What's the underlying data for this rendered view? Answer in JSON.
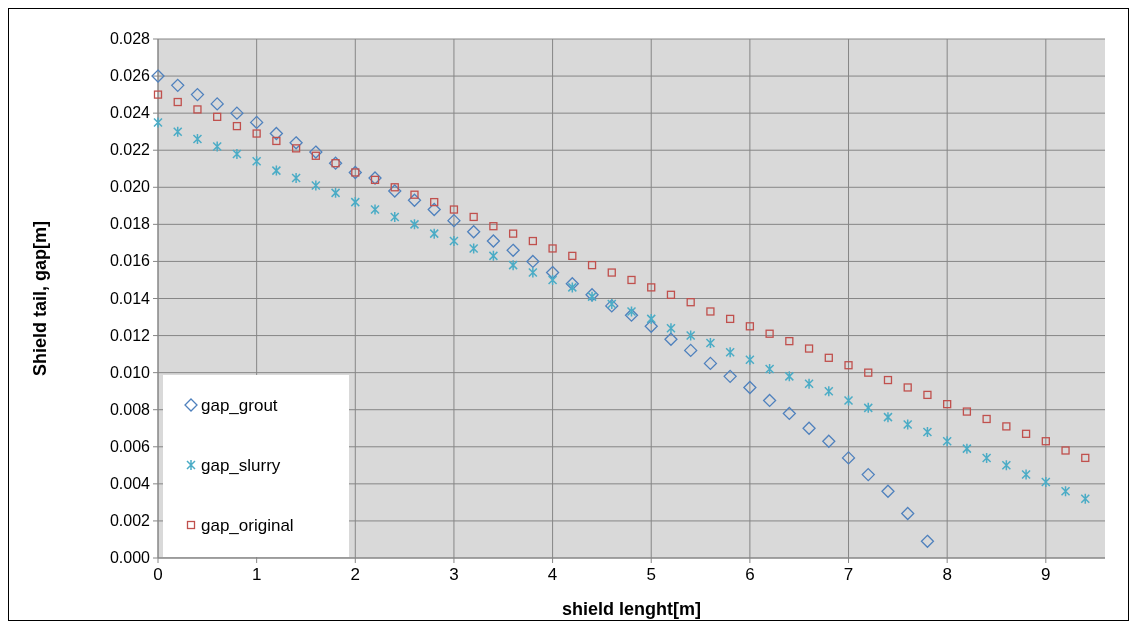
{
  "chart_data": {
    "type": "scatter",
    "xlabel": "shield lenght[m]",
    "ylabel": "Shield tail, gap[m]",
    "xlim": [
      0,
      9.6
    ],
    "xticks": [
      0,
      1,
      2,
      3,
      4,
      5,
      6,
      7,
      8,
      9
    ],
    "ylim": [
      0,
      0.028
    ],
    "yticks": [
      {
        "value": 0,
        "label": "0.000"
      },
      {
        "value": 0.002,
        "label": "0.002"
      },
      {
        "value": 0.004,
        "label": "0.004"
      },
      {
        "value": 0.006,
        "label": "0.006"
      },
      {
        "value": 0.008,
        "label": "0.008"
      },
      {
        "value": 0.01,
        "label": "0.010"
      },
      {
        "value": 0.012,
        "label": "0.012"
      },
      {
        "value": 0.014,
        "label": "0.014"
      },
      {
        "value": 0.016,
        "label": "0.016"
      },
      {
        "value": 0.018,
        "label": "0.018"
      },
      {
        "value": 0.02,
        "label": "0.020"
      },
      {
        "value": 0.022,
        "label": "0.022"
      },
      {
        "value": 0.024,
        "label": "0.024"
      },
      {
        "value": 0.026,
        "label": "0.026"
      },
      {
        "value": 0.028,
        "label": "0.028"
      }
    ],
    "grid": true,
    "legend": "bottom left",
    "series": [
      {
        "name": "gap_grout",
        "color": "#4f81bd",
        "marker": "diamond",
        "x": [
          0,
          0.2,
          0.4,
          0.6,
          0.8,
          1,
          1.2,
          1.4,
          1.6,
          1.8,
          2,
          2.2,
          2.4,
          2.6,
          2.8,
          3,
          3.2,
          3.4,
          3.6,
          3.8,
          4,
          4.2,
          4.4,
          4.6,
          4.8,
          5,
          5.2,
          5.4,
          5.6,
          5.8,
          6,
          6.2,
          6.4,
          6.6,
          6.8,
          7,
          7.2,
          7.4,
          7.6,
          7.8
        ],
        "values": [
          0.026,
          0.0255,
          0.025,
          0.0245,
          0.024,
          0.0235,
          0.0229,
          0.0224,
          0.0219,
          0.0213,
          0.0208,
          0.0205,
          0.0198,
          0.0193,
          0.0188,
          0.0182,
          0.0176,
          0.0171,
          0.0166,
          0.016,
          0.0154,
          0.0148,
          0.0142,
          0.0136,
          0.0131,
          0.0125,
          0.0118,
          0.0112,
          0.0105,
          0.0098,
          0.0092,
          0.0085,
          0.0078,
          0.007,
          0.0063,
          0.0054,
          0.0045,
          0.0036,
          0.0024,
          0.0009
        ]
      },
      {
        "name": "gap_slurry",
        "color": "#4bacc6",
        "marker": "cross",
        "x": [
          0,
          0.2,
          0.4,
          0.6,
          0.8,
          1,
          1.2,
          1.4,
          1.6,
          1.8,
          2,
          2.2,
          2.4,
          2.6,
          2.8,
          3,
          3.2,
          3.4,
          3.6,
          3.8,
          4,
          4.2,
          4.4,
          4.6,
          4.8,
          5,
          5.2,
          5.4,
          5.6,
          5.8,
          6,
          6.2,
          6.4,
          6.6,
          6.8,
          7,
          7.2,
          7.4,
          7.6,
          7.8,
          8,
          8.2,
          8.4,
          8.6,
          8.8,
          9,
          9.2,
          9.4
        ],
        "values": [
          0.0235,
          0.023,
          0.0226,
          0.0222,
          0.0218,
          0.0214,
          0.0209,
          0.0205,
          0.0201,
          0.0197,
          0.0192,
          0.0188,
          0.0184,
          0.018,
          0.0175,
          0.0171,
          0.0167,
          0.0163,
          0.0158,
          0.0154,
          0.015,
          0.0146,
          0.0141,
          0.0137,
          0.0133,
          0.0129,
          0.0124,
          0.012,
          0.0116,
          0.0111,
          0.0107,
          0.0102,
          0.0098,
          0.0094,
          0.009,
          0.0085,
          0.0081,
          0.0076,
          0.0072,
          0.0068,
          0.0063,
          0.0059,
          0.0054,
          0.005,
          0.0045,
          0.0041,
          0.0036,
          0.0032
        ]
      },
      {
        "name": "gap_original",
        "color": "#c0504d",
        "marker": "square",
        "x": [
          0,
          0.2,
          0.4,
          0.6,
          0.8,
          1,
          1.2,
          1.4,
          1.6,
          1.8,
          2,
          2.2,
          2.4,
          2.6,
          2.8,
          3,
          3.2,
          3.4,
          3.6,
          3.8,
          4,
          4.2,
          4.4,
          4.6,
          4.8,
          5,
          5.2,
          5.4,
          5.6,
          5.8,
          6,
          6.2,
          6.4,
          6.6,
          6.8,
          7,
          7.2,
          7.4,
          7.6,
          7.8,
          8,
          8.2,
          8.4,
          8.6,
          8.8,
          9,
          9.2,
          9.4
        ],
        "values": [
          0.025,
          0.0246,
          0.0242,
          0.0238,
          0.0233,
          0.0229,
          0.0225,
          0.0221,
          0.0217,
          0.0213,
          0.0208,
          0.0204,
          0.02,
          0.0196,
          0.0192,
          0.0188,
          0.0184,
          0.0179,
          0.0175,
          0.0171,
          0.0167,
          0.0163,
          0.0158,
          0.0154,
          0.015,
          0.0146,
          0.0142,
          0.0138,
          0.0133,
          0.0129,
          0.0125,
          0.0121,
          0.0117,
          0.0113,
          0.0108,
          0.0104,
          0.01,
          0.0096,
          0.0092,
          0.0088,
          0.0083,
          0.0079,
          0.0075,
          0.0071,
          0.0067,
          0.0063,
          0.0058,
          0.0054
        ]
      }
    ]
  }
}
